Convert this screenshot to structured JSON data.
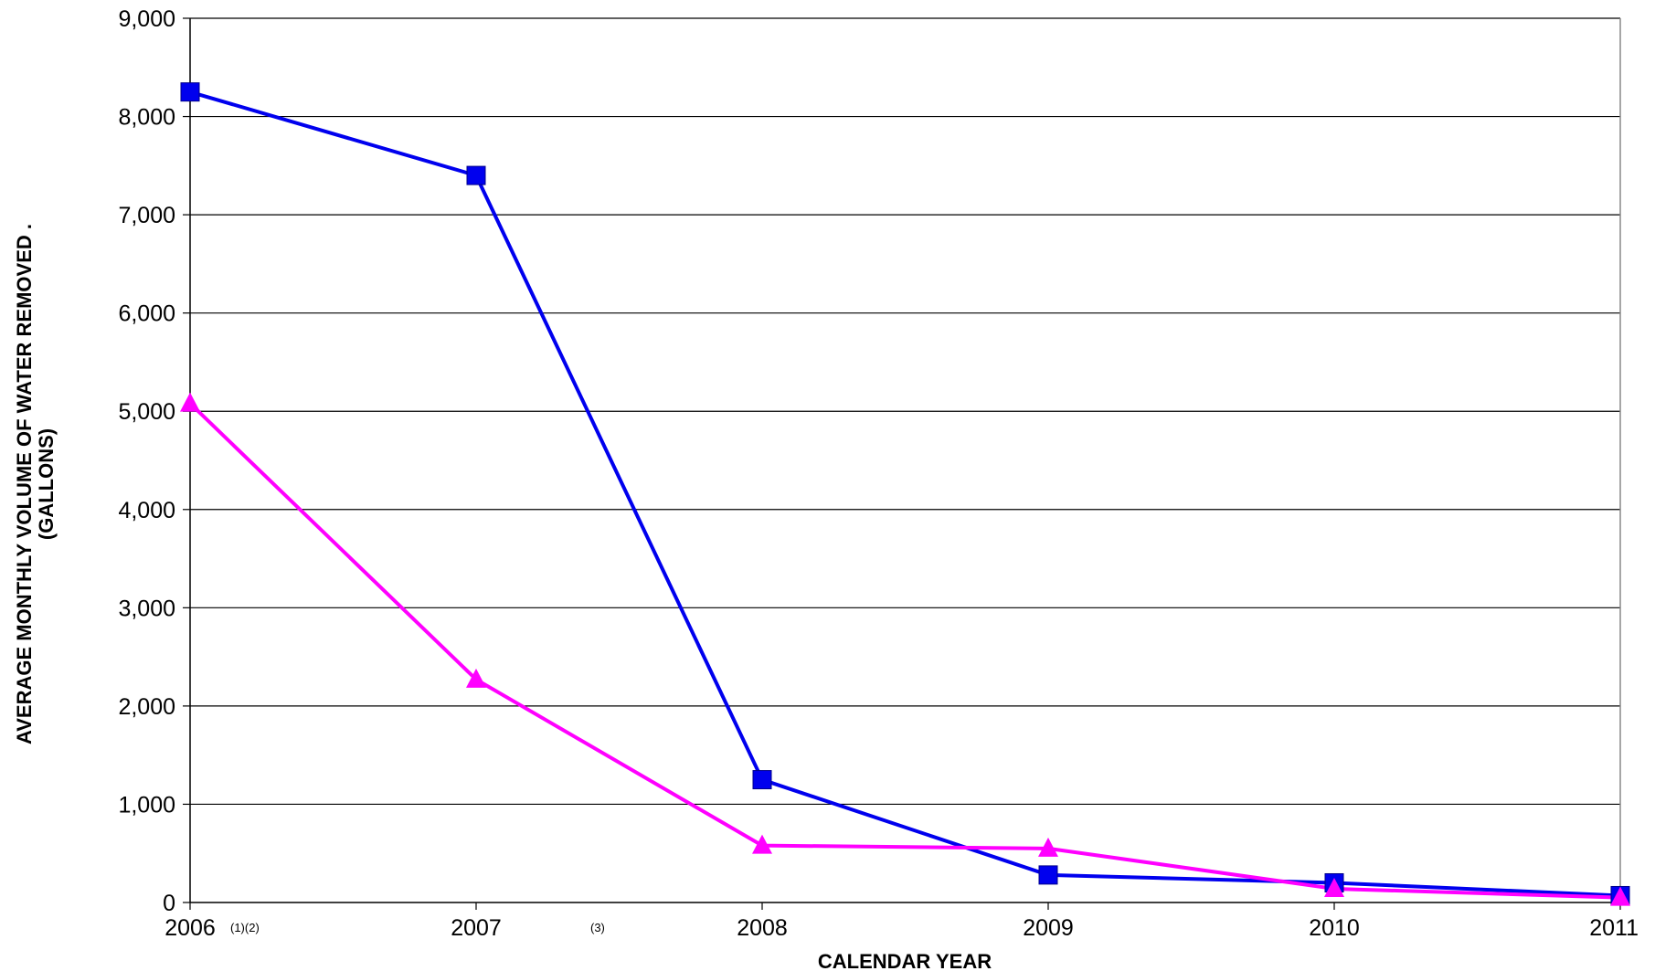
{
  "chart_data": {
    "type": "line",
    "title": "",
    "xlabel": "CALENDAR YEAR",
    "ylabel_line1": "AVERAGE MONTHLY VOLUME OF WATER REMOVED   .",
    "ylabel_line2": "(GALLONS)",
    "x": [
      "2006",
      "2007",
      "2008",
      "2009",
      "2010",
      "2011"
    ],
    "x_notes": [
      {
        "after": "2006",
        "text": "(1)(2)"
      },
      {
        "after": "2007",
        "text": "(3)"
      }
    ],
    "ylim": [
      0,
      9000
    ],
    "yticks": [
      0,
      1000,
      2000,
      3000,
      4000,
      5000,
      6000,
      7000,
      8000,
      9000
    ],
    "ytick_labels": [
      "0",
      "1,000",
      "2,000",
      "3,000",
      "4,000",
      "5,000",
      "6,000",
      "7,000",
      "8,000",
      "9,000"
    ],
    "grid": true,
    "series": [
      {
        "marker": "square",
        "color": "#0000ee",
        "values": [
          8250,
          7400,
          1250,
          280,
          200,
          70
        ]
      },
      {
        "marker": "triangle",
        "color": "#ff00ff",
        "values": [
          5080,
          2270,
          580,
          550,
          140,
          50
        ]
      }
    ]
  }
}
